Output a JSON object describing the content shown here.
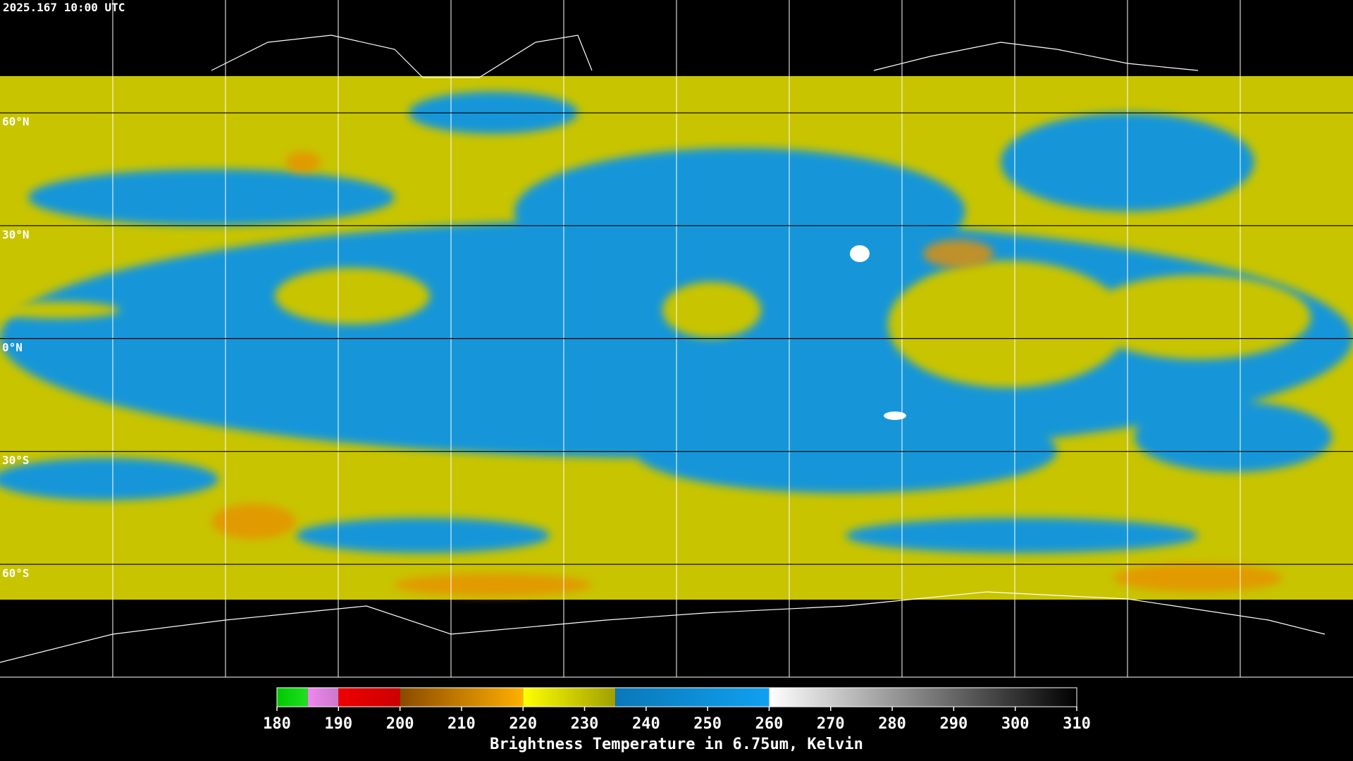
{
  "timestamp": "2025.167 10:00 UTC",
  "latitude_range": [
    -90,
    90
  ],
  "latitude_lines": [
    {
      "value": 60,
      "label": "60°N"
    },
    {
      "value": 30,
      "label": "30°N"
    },
    {
      "value": 0,
      "label": "0°N"
    },
    {
      "value": -30,
      "label": "30°S"
    },
    {
      "value": -60,
      "label": "60°S"
    }
  ],
  "colorbar": {
    "title": "Brightness Temperature in 6.75um, Kelvin",
    "range": [
      180,
      310
    ],
    "ticks": [
      180,
      190,
      200,
      210,
      220,
      230,
      240,
      250,
      260,
      270,
      280,
      290,
      300,
      310
    ],
    "segments": [
      {
        "from": 180,
        "to": 185,
        "colors": [
          "#00c800",
          "#20e020"
        ]
      },
      {
        "from": 185,
        "to": 190,
        "colors": [
          "#ee88ee",
          "#cc77cc"
        ]
      },
      {
        "from": 190,
        "to": 200,
        "colors": [
          "#ee0000",
          "#cc0000"
        ]
      },
      {
        "from": 200,
        "to": 220,
        "colors": [
          "#8a4a00",
          "#ffb000"
        ]
      },
      {
        "from": 220,
        "to": 235,
        "colors": [
          "#ffff00",
          "#a0a000"
        ]
      },
      {
        "from": 235,
        "to": 260,
        "colors": [
          "#0a78b8",
          "#10a0f0"
        ]
      },
      {
        "from": 260,
        "to": 310,
        "colors": [
          "#ffffff",
          "#000000"
        ]
      }
    ]
  }
}
